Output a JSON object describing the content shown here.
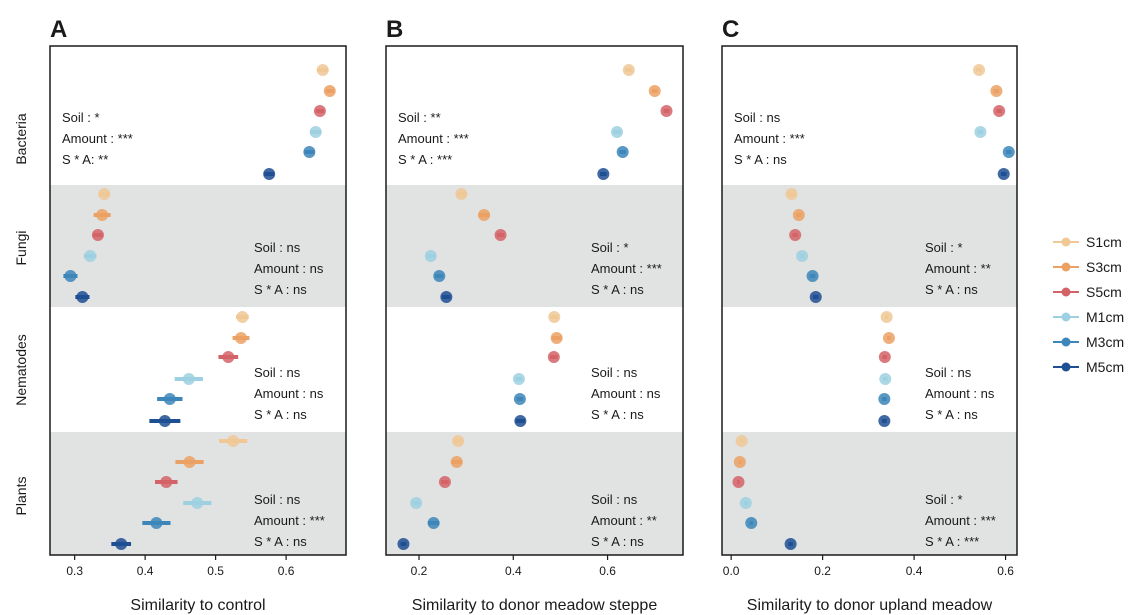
{
  "chart_data": {
    "type": "scatter",
    "groups": [
      "Bacteria",
      "Fungi",
      "Nematodes",
      "Plants"
    ],
    "legend": [
      {
        "name": "S1cm",
        "color": "#f0c896"
      },
      {
        "name": "S3cm",
        "color": "#eba163"
      },
      {
        "name": "S5cm",
        "color": "#d36369"
      },
      {
        "name": "M1cm",
        "color": "#9dd0e0"
      },
      {
        "name": "M3cm",
        "color": "#3c86b9"
      },
      {
        "name": "M5cm",
        "color": "#1f4f93"
      }
    ],
    "panels": [
      {
        "letter": "A",
        "xlabel": "Similarity to control",
        "xlim": [
          0.265,
          0.685
        ],
        "xticks": [
          0.3,
          0.4,
          0.5,
          0.6
        ],
        "xtick_labels": [
          "0.3",
          "0.4",
          "0.5",
          "0.6"
        ],
        "groups": [
          {
            "group": "Bacteria",
            "values": [
              0.652,
              0.662,
              0.648,
              0.642,
              0.633,
              0.576
            ],
            "errors": [
              0.008,
              0.006,
              0.006,
              0.008,
              0.007,
              0.007
            ],
            "stats": [
              "Soil :  *",
              "Amount : ***",
              "S * A:  **"
            ],
            "stats_pos": "left"
          },
          {
            "group": "Fungi",
            "values": [
              0.342,
              0.339,
              0.333,
              0.322,
              0.294,
              0.311
            ],
            "errors": [
              0.008,
              0.012,
              0.007,
              0.009,
              0.01,
              0.01
            ],
            "stats": [
              "Soil : ns",
              "Amount : ns",
              "S * A : ns"
            ],
            "stats_pos": "right"
          },
          {
            "group": "Nematodes",
            "values": [
              0.538,
              0.536,
              0.518,
              0.462,
              0.435,
              0.428
            ],
            "errors": [
              0.009,
              0.012,
              0.014,
              0.02,
              0.018,
              0.022
            ],
            "stats": [
              "Soil : ns",
              "Amount : ns",
              "S * A : ns"
            ],
            "stats_pos": "right"
          },
          {
            "group": "Plants",
            "values": [
              0.525,
              0.463,
              0.43,
              0.474,
              0.416,
              0.366
            ],
            "errors": [
              0.02,
              0.02,
              0.016,
              0.02,
              0.02,
              0.014
            ],
            "stats": [
              "Soil : ns",
              "Amount : ***",
              "S * A : ns"
            ],
            "stats_pos": "right"
          }
        ]
      },
      {
        "letter": "B",
        "xlabel": "Similarity to donor meadow steppe",
        "xlim": [
          0.13,
          0.76
        ],
        "xticks": [
          0.2,
          0.4,
          0.6
        ],
        "xtick_labels": [
          "0.2",
          "0.4",
          "0.6"
        ],
        "groups": [
          {
            "group": "Bacteria",
            "values": [
              0.645,
              0.7,
              0.725,
              0.62,
              0.632,
              0.591
            ],
            "errors": [
              0.008,
              0.006,
              0.006,
              0.008,
              0.007,
              0.007
            ],
            "stats": [
              "Soil : **",
              "Amount : ***",
              "S * A : ***"
            ],
            "stats_pos": "left"
          },
          {
            "group": "Fungi",
            "values": [
              0.29,
              0.338,
              0.373,
              0.225,
              0.243,
              0.258
            ],
            "errors": [
              0.01,
              0.012,
              0.008,
              0.009,
              0.009,
              0.009
            ],
            "stats": [
              "Soil : *",
              "Amount : ***",
              "S * A : ns"
            ],
            "stats_pos": "right"
          },
          {
            "group": "Nematodes",
            "values": [
              0.487,
              0.492,
              0.486,
              0.412,
              0.414,
              0.415
            ],
            "errors": [
              0.008,
              0.01,
              0.008,
              0.008,
              0.007,
              0.01
            ],
            "stats": [
              "Soil : ns",
              "Amount : ns",
              "S * A : ns"
            ],
            "stats_pos": "right"
          },
          {
            "group": "Plants",
            "values": [
              0.283,
              0.28,
              0.255,
              0.194,
              0.231,
              0.167
            ],
            "errors": [
              0.01,
              0.012,
              0.008,
              0.008,
              0.012,
              0.006
            ],
            "stats": [
              "Soil : ns",
              "Amount : **",
              "S * A : ns"
            ],
            "stats_pos": "right"
          }
        ]
      },
      {
        "letter": "C",
        "xlabel": "Similarity to donor upland meadow",
        "xlim": [
          -0.02,
          0.625
        ],
        "xticks": [
          0.0,
          0.2,
          0.4,
          0.6
        ],
        "xtick_labels": [
          "0.0",
          "0.2",
          "0.4",
          "0.6"
        ],
        "groups": [
          {
            "group": "Bacteria",
            "values": [
              0.542,
              0.58,
              0.586,
              0.545,
              0.607,
              0.596
            ],
            "errors": [
              0.006,
              0.006,
              0.006,
              0.006,
              0.006,
              0.006
            ],
            "stats": [
              "Soil : ns",
              "Amount : ***",
              "S * A : ns"
            ],
            "stats_pos": "left"
          },
          {
            "group": "Fungi",
            "values": [
              0.132,
              0.148,
              0.14,
              0.155,
              0.178,
              0.185
            ],
            "errors": [
              0.008,
              0.006,
              0.006,
              0.006,
              0.006,
              0.006
            ],
            "stats": [
              "Soil : *",
              "Amount : **",
              "S * A : ns"
            ],
            "stats_pos": "right"
          },
          {
            "group": "Nematodes",
            "values": [
              0.34,
              0.345,
              0.336,
              0.337,
              0.335,
              0.335
            ],
            "errors": [
              0.004,
              0.004,
              0.005,
              0.005,
              0.005,
              0.005
            ],
            "stats": [
              "Soil : ns",
              "Amount : ns",
              "S * A : ns"
            ],
            "stats_pos": "right"
          },
          {
            "group": "Plants",
            "values": [
              0.023,
              0.019,
              0.016,
              0.032,
              0.044,
              0.13
            ],
            "errors": [
              0.003,
              0.003,
              0.003,
              0.004,
              0.004,
              0.005
            ],
            "stats": [
              "Soil : *",
              "Amount : ***",
              "S * A : ***"
            ],
            "stats_pos": "right"
          }
        ]
      }
    ],
    "grid": false,
    "legend_position": "right"
  }
}
